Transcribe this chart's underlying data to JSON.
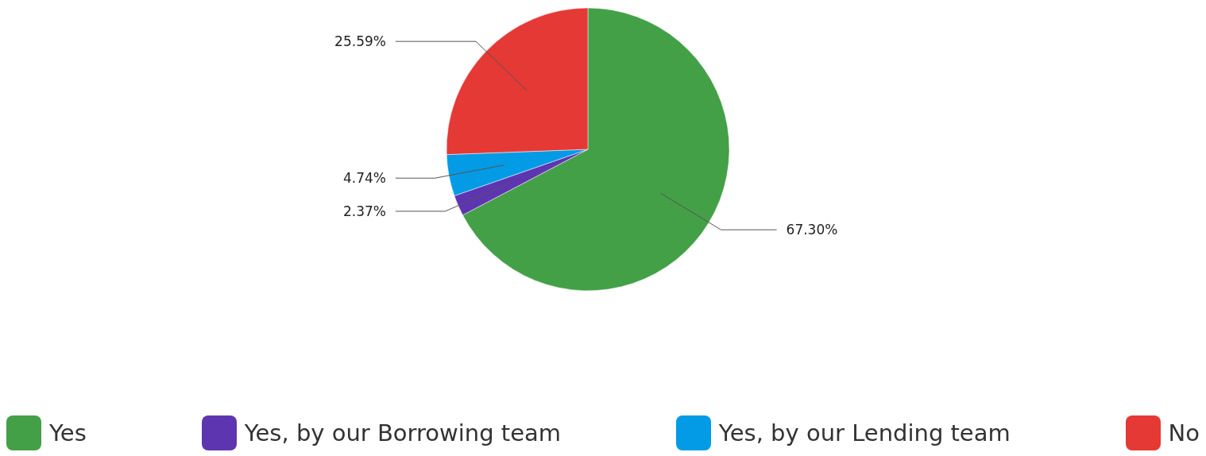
{
  "chart_data": {
    "type": "pie",
    "categories": [
      "Yes",
      "Yes, by our Borrowing team",
      "Yes, by our Lending team",
      "No"
    ],
    "values": [
      67.3,
      2.37,
      4.74,
      25.59
    ],
    "value_labels": [
      "67.30%",
      "2.37%",
      "4.74%",
      "25.59%"
    ],
    "colors": [
      "#43a047",
      "#5e35b1",
      "#039be5",
      "#e53935"
    ],
    "legend": "bottom"
  }
}
